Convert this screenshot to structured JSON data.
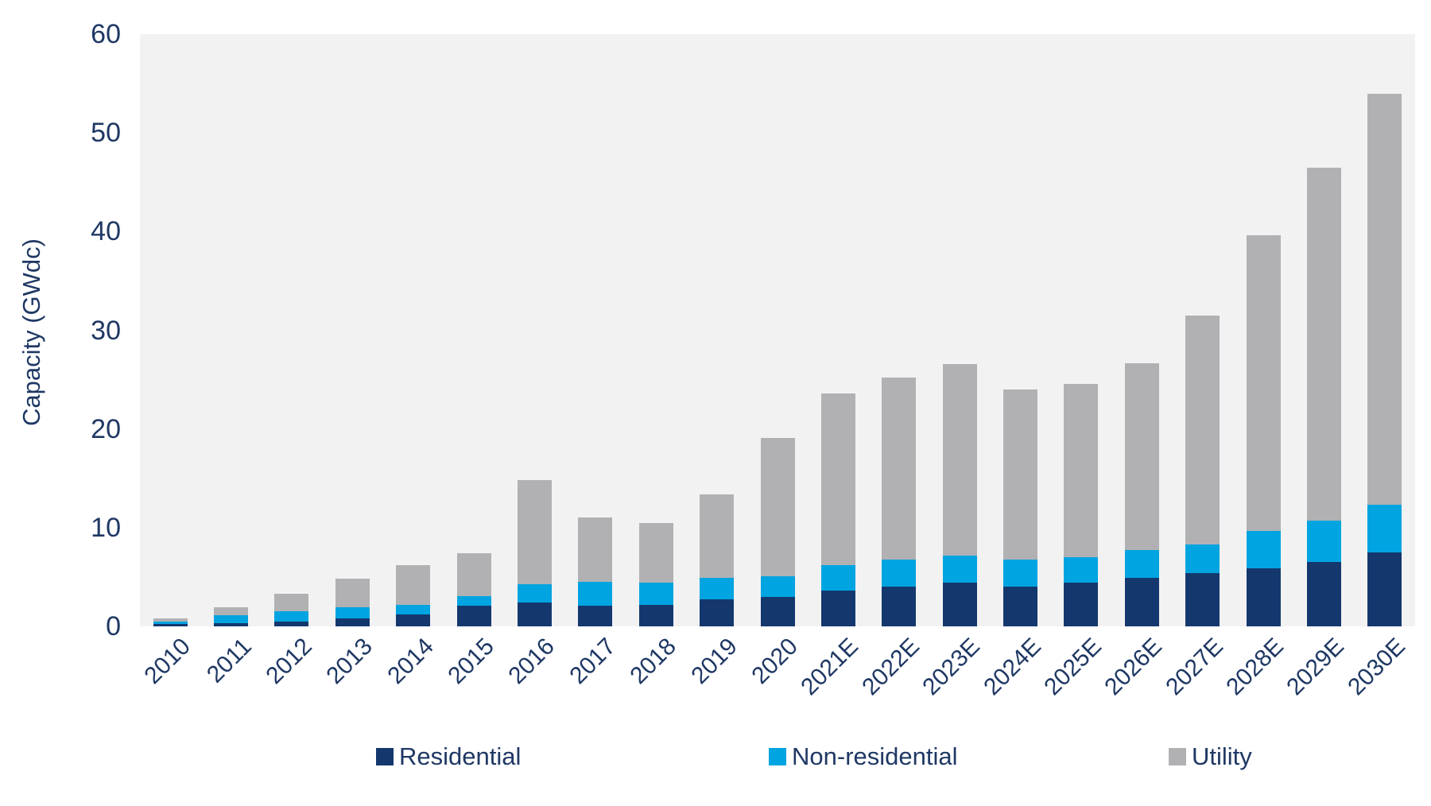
{
  "chart_data": {
    "type": "bar",
    "stacked": true,
    "title": "",
    "xlabel": "",
    "ylabel": "Capacity (GWdc)",
    "ylim": [
      0,
      60
    ],
    "yticks": [
      0,
      10,
      20,
      30,
      40,
      50,
      60
    ],
    "grid": false,
    "legend_position": "bottom",
    "plot_background": "#f2f2f2",
    "categories": [
      "2010",
      "2011",
      "2012",
      "2013",
      "2014",
      "2015",
      "2016",
      "2017",
      "2018",
      "2019",
      "2020",
      "2021E",
      "2022E",
      "2023E",
      "2024E",
      "2025E",
      "2026E",
      "2027E",
      "2028E",
      "2029E",
      "2030E"
    ],
    "series": [
      {
        "name": "Residential",
        "color": "#14386e",
        "values": [
          0.25,
          0.3,
          0.5,
          0.8,
          1.2,
          2.1,
          2.4,
          2.1,
          2.2,
          2.7,
          3.0,
          3.6,
          4.0,
          4.4,
          4.0,
          4.4,
          4.9,
          5.4,
          5.9,
          6.5,
          7.5
        ]
      },
      {
        "name": "Non-residential",
        "color": "#00a4e0",
        "values": [
          0.25,
          0.8,
          1.0,
          1.1,
          1.0,
          1.0,
          1.9,
          2.4,
          2.2,
          2.2,
          2.1,
          2.6,
          2.8,
          2.8,
          2.8,
          2.6,
          2.8,
          2.9,
          3.8,
          4.2,
          4.8
        ]
      },
      {
        "name": "Utility",
        "color": "#b1b1b4",
        "values": [
          0.3,
          0.8,
          1.8,
          2.9,
          4.0,
          4.3,
          10.5,
          6.5,
          6.1,
          8.5,
          14.0,
          17.4,
          18.4,
          19.4,
          17.2,
          17.6,
          19.0,
          23.2,
          29.9,
          35.8,
          41.7
        ]
      }
    ],
    "totals": [
      0.8,
      1.9,
      3.3,
      4.8,
      6.2,
      7.4,
      14.8,
      11.0,
      10.5,
      13.4,
      19.1,
      23.6,
      25.2,
      26.6,
      24.0,
      24.6,
      26.7,
      31.5,
      39.6,
      46.5,
      54.0
    ]
  },
  "colors": {
    "text": "#1f3864",
    "plot_bg": "#f2f2f2",
    "page_bg": "#ffffff"
  },
  "legend": {
    "items": [
      "Residential",
      "Non-residential",
      "Utility"
    ]
  }
}
